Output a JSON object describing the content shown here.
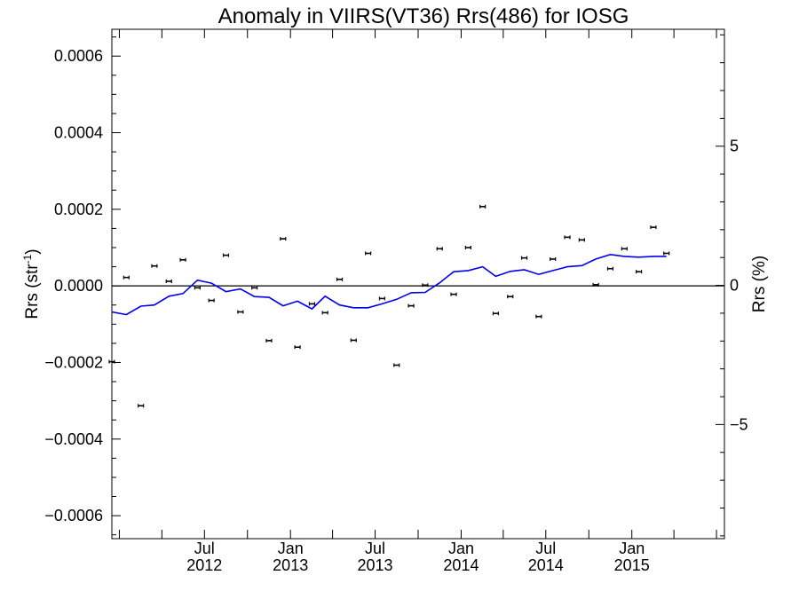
{
  "chart_data": {
    "type": "scatter",
    "title": "Anomaly in VIIRS(VT36) Rrs(486) for IOSG",
    "ylabel_left": {
      "base": "Rrs (str",
      "sup": "-1",
      "close": ")"
    },
    "ylabel_right": "Rrs (%)",
    "xlim": [
      "2011-12-16",
      "2015-07-18"
    ],
    "ylim": [
      -0.00066,
      0.00067
    ],
    "ylim_right_percent": [
      -9.1,
      9.2
    ],
    "grid": false,
    "zero_line": true,
    "left_ticks": [
      {
        "value": 0.0006,
        "label": "0.0006"
      },
      {
        "value": 0.0004,
        "label": "0.0004"
      },
      {
        "value": 0.0002,
        "label": "0.0002"
      },
      {
        "value": 0.0,
        "label": "0.0000"
      },
      {
        "value": -0.0002,
        "label": "−0.0002"
      },
      {
        "value": -0.0004,
        "label": "−0.0004"
      },
      {
        "value": -0.0006,
        "label": "−0.0006"
      }
    ],
    "right_ticks": [
      {
        "value": 5,
        "label": "5"
      },
      {
        "value": 0,
        "label": "0"
      },
      {
        "value": -5,
        "label": "−5"
      }
    ],
    "x_ticks": [
      {
        "date": "2012-07-01",
        "month": "Jul",
        "year": "2012"
      },
      {
        "date": "2013-01-01",
        "month": "Jan",
        "year": "2013"
      },
      {
        "date": "2013-07-01",
        "month": "Jul",
        "year": "2013"
      },
      {
        "date": "2014-01-01",
        "month": "Jan",
        "year": "2014"
      },
      {
        "date": "2014-07-01",
        "month": "Jul",
        "year": "2014"
      },
      {
        "date": "2015-01-01",
        "month": "Jan",
        "year": "2015"
      }
    ],
    "series": [
      {
        "kind": "points_with_errorbars",
        "color": "#000000",
        "points": [
          {
            "x": "2011-12-16",
            "y": -0.000198
          },
          {
            "x": "2012-01-16",
            "y": 2.2e-05
          },
          {
            "x": "2012-02-16",
            "y": -0.000313
          },
          {
            "x": "2012-03-16",
            "y": 5.2e-05
          },
          {
            "x": "2012-04-16",
            "y": 1.2e-05
          },
          {
            "x": "2012-05-16",
            "y": 6.8e-05
          },
          {
            "x": "2012-06-16",
            "y": -5e-06
          },
          {
            "x": "2012-07-16",
            "y": -3.8e-05
          },
          {
            "x": "2012-08-16",
            "y": 8e-05
          },
          {
            "x": "2012-09-16",
            "y": -6.8e-05
          },
          {
            "x": "2012-10-16",
            "y": -5e-06
          },
          {
            "x": "2012-11-16",
            "y": -0.000143
          },
          {
            "x": "2012-12-16",
            "y": 0.000123
          },
          {
            "x": "2013-01-16",
            "y": -0.00016
          },
          {
            "x": "2013-02-16",
            "y": -4.7e-05
          },
          {
            "x": "2013-03-16",
            "y": -7e-05
          },
          {
            "x": "2013-04-16",
            "y": 1.7e-05
          },
          {
            "x": "2013-05-16",
            "y": -0.000142
          },
          {
            "x": "2013-06-16",
            "y": 8.5e-05
          },
          {
            "x": "2013-07-16",
            "y": -3.3e-05
          },
          {
            "x": "2013-08-16",
            "y": -0.000207
          },
          {
            "x": "2013-09-16",
            "y": -5.2e-05
          },
          {
            "x": "2013-10-16",
            "y": 2e-06
          },
          {
            "x": "2013-11-16",
            "y": 9.7e-05
          },
          {
            "x": "2013-12-16",
            "y": -2.2e-05
          },
          {
            "x": "2014-01-16",
            "y": 0.0001
          },
          {
            "x": "2014-02-16",
            "y": 0.000207
          },
          {
            "x": "2014-03-16",
            "y": -7.2e-05
          },
          {
            "x": "2014-04-16",
            "y": -2.8e-05
          },
          {
            "x": "2014-05-16",
            "y": 7.3e-05
          },
          {
            "x": "2014-06-16",
            "y": -8e-05
          },
          {
            "x": "2014-07-16",
            "y": 7e-05
          },
          {
            "x": "2014-08-16",
            "y": 0.000127
          },
          {
            "x": "2014-09-16",
            "y": 0.00012
          },
          {
            "x": "2014-10-16",
            "y": 3e-06
          },
          {
            "x": "2014-11-16",
            "y": 4.5e-05
          },
          {
            "x": "2014-12-16",
            "y": 9.7e-05
          },
          {
            "x": "2015-01-16",
            "y": 3.7e-05
          },
          {
            "x": "2015-02-16",
            "y": 0.000153
          },
          {
            "x": "2015-03-16",
            "y": 8.5e-05
          }
        ]
      },
      {
        "kind": "line",
        "color": "#0000ee",
        "points": [
          {
            "x": "2011-12-16",
            "y": -6.8e-05
          },
          {
            "x": "2012-01-16",
            "y": -7.5e-05
          },
          {
            "x": "2012-02-16",
            "y": -5.3e-05
          },
          {
            "x": "2012-03-16",
            "y": -5e-05
          },
          {
            "x": "2012-04-16",
            "y": -2.7e-05
          },
          {
            "x": "2012-05-16",
            "y": -2e-05
          },
          {
            "x": "2012-06-16",
            "y": 1.5e-05
          },
          {
            "x": "2012-07-16",
            "y": 7e-06
          },
          {
            "x": "2012-08-16",
            "y": -1.5e-05
          },
          {
            "x": "2012-09-16",
            "y": -8e-06
          },
          {
            "x": "2012-10-16",
            "y": -2.8e-05
          },
          {
            "x": "2012-11-16",
            "y": -3e-05
          },
          {
            "x": "2012-12-16",
            "y": -5.2e-05
          },
          {
            "x": "2013-01-16",
            "y": -4e-05
          },
          {
            "x": "2013-02-16",
            "y": -6e-05
          },
          {
            "x": "2013-03-16",
            "y": -2.7e-05
          },
          {
            "x": "2013-04-16",
            "y": -5e-05
          },
          {
            "x": "2013-05-16",
            "y": -5.7e-05
          },
          {
            "x": "2013-06-16",
            "y": -5.7e-05
          },
          {
            "x": "2013-07-16",
            "y": -4.7e-05
          },
          {
            "x": "2013-08-16",
            "y": -3.5e-05
          },
          {
            "x": "2013-09-16",
            "y": -1.8e-05
          },
          {
            "x": "2013-10-16",
            "y": -1.7e-05
          },
          {
            "x": "2013-11-16",
            "y": 8e-06
          },
          {
            "x": "2013-12-16",
            "y": 3.7e-05
          },
          {
            "x": "2014-01-16",
            "y": 4e-05
          },
          {
            "x": "2014-02-16",
            "y": 5e-05
          },
          {
            "x": "2014-03-16",
            "y": 2.5e-05
          },
          {
            "x": "2014-04-16",
            "y": 3.8e-05
          },
          {
            "x": "2014-05-16",
            "y": 4.2e-05
          },
          {
            "x": "2014-06-16",
            "y": 3e-05
          },
          {
            "x": "2014-07-16",
            "y": 4e-05
          },
          {
            "x": "2014-08-16",
            "y": 5e-05
          },
          {
            "x": "2014-09-16",
            "y": 5.3e-05
          },
          {
            "x": "2014-10-16",
            "y": 7e-05
          },
          {
            "x": "2014-11-16",
            "y": 8.2e-05
          },
          {
            "x": "2014-12-16",
            "y": 7.7e-05
          },
          {
            "x": "2015-01-16",
            "y": 7.5e-05
          },
          {
            "x": "2015-02-16",
            "y": 7.7e-05
          },
          {
            "x": "2015-03-16",
            "y": 7.7e-05
          }
        ]
      }
    ]
  }
}
